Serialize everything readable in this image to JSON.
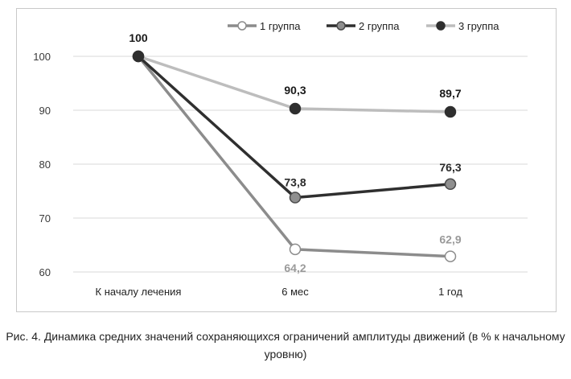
{
  "chart_data": {
    "type": "line",
    "categories": [
      "К началу лечения",
      "6 мес",
      "1 год"
    ],
    "ylim": [
      60,
      100
    ],
    "yticks": [
      60,
      70,
      80,
      90,
      100
    ],
    "grid": "horizontal",
    "legend_position": "top-right",
    "series": [
      {
        "name": "1 группа",
        "values": [
          100,
          64.2,
          62.9
        ],
        "labels": [
          "",
          "64,2",
          "62,9"
        ],
        "line_color": "#8c8c8c",
        "marker_fill": "#ffffff",
        "marker_stroke": "#8c8c8c",
        "label_color": "#9a9a9a"
      },
      {
        "name": "2 группа",
        "values": [
          100,
          73.8,
          76.3
        ],
        "labels": [
          "",
          "73,8",
          "76,3"
        ],
        "line_color": "#2f2f2f",
        "marker_fill": "#8f8f8f",
        "marker_stroke": "#4a4a4a",
        "label_color": "#2a2a2a"
      },
      {
        "name": "3 группа",
        "values": [
          100,
          90.3,
          89.7
        ],
        "labels": [
          "100",
          "90,3",
          "89,7"
        ],
        "line_color": "#bdbdbd",
        "marker_fill": "#2e2e2e",
        "marker_stroke": "#2e2e2e",
        "label_color": "#1a1a1a"
      }
    ]
  },
  "caption": "Рис. 4. Динамика средних значений сохраняющихся ограничений амплитуды движений (в % к начальному уровню)"
}
